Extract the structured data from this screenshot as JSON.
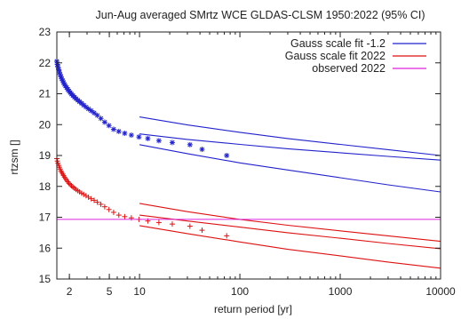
{
  "chart_data": {
    "type": "scatter",
    "title": "Jun-Aug averaged  SMrtz WCE GLDAS-CLSM 1950:2022 (95% CI)",
    "xlabel": "return period [yr]",
    "ylabel": "rtzsm []",
    "xscale": "log",
    "xlim": [
      1.5,
      10000
    ],
    "ylim": [
      15,
      23
    ],
    "grid": false,
    "legend_position": "top-right",
    "x_ticks": [
      {
        "value": 2,
        "label": "2"
      },
      {
        "value": 5,
        "label": "5"
      },
      {
        "value": 10,
        "label": "10"
      },
      {
        "value": 100,
        "label": "100"
      },
      {
        "value": 1000,
        "label": "1000"
      },
      {
        "value": 10000,
        "label": "10000"
      }
    ],
    "y_ticks": [
      {
        "value": 15,
        "label": "15"
      },
      {
        "value": 16,
        "label": "16"
      },
      {
        "value": 17,
        "label": "17"
      },
      {
        "value": 18,
        "label": "18"
      },
      {
        "value": 19,
        "label": "19"
      },
      {
        "value": 20,
        "label": "20"
      },
      {
        "value": 21,
        "label": "21"
      },
      {
        "value": 22,
        "label": "22"
      },
      {
        "value": 23,
        "label": "23"
      }
    ],
    "series": [
      {
        "name": "Gauss scale fit -1.2",
        "color": "#2222cc",
        "fit": {
          "x": [
            10,
            30,
            100,
            300,
            1000,
            3000,
            10000
          ],
          "central": [
            19.7,
            19.52,
            19.36,
            19.22,
            19.09,
            18.97,
            18.85
          ],
          "upper": [
            20.25,
            19.99,
            19.75,
            19.55,
            19.36,
            19.19,
            19.0
          ],
          "lower": [
            19.35,
            19.06,
            18.76,
            18.53,
            18.28,
            18.05,
            17.82
          ]
        },
        "points_marker": "asterisk",
        "points": [
          [
            1.5,
            22.05
          ],
          [
            1.52,
            21.95
          ],
          [
            1.54,
            21.87
          ],
          [
            1.57,
            21.78
          ],
          [
            1.59,
            21.7
          ],
          [
            1.62,
            21.62
          ],
          [
            1.65,
            21.55
          ],
          [
            1.68,
            21.48
          ],
          [
            1.72,
            21.42
          ],
          [
            1.75,
            21.36
          ],
          [
            1.79,
            21.3
          ],
          [
            1.83,
            21.25
          ],
          [
            1.88,
            21.2
          ],
          [
            1.93,
            21.14
          ],
          [
            1.98,
            21.09
          ],
          [
            2.04,
            21.04
          ],
          [
            2.1,
            20.99
          ],
          [
            2.17,
            20.94
          ],
          [
            2.25,
            20.89
          ],
          [
            2.33,
            20.84
          ],
          [
            2.43,
            20.79
          ],
          [
            2.53,
            20.74
          ],
          [
            2.65,
            20.69
          ],
          [
            2.78,
            20.63
          ],
          [
            2.93,
            20.57
          ],
          [
            3.1,
            20.51
          ],
          [
            3.3,
            20.45
          ],
          [
            3.53,
            20.38
          ],
          [
            3.8,
            20.3
          ],
          [
            4.12,
            20.2
          ],
          [
            4.5,
            20.08
          ],
          [
            4.96,
            19.97
          ],
          [
            5.52,
            19.85
          ],
          [
            6.22,
            19.78
          ],
          [
            7.12,
            19.72
          ],
          [
            8.29,
            19.66
          ],
          [
            9.87,
            19.6
          ],
          [
            12.1,
            19.55
          ],
          [
            15.6,
            19.48
          ],
          [
            21.2,
            19.42
          ],
          [
            31.8,
            19.35
          ],
          [
            42.0,
            19.2
          ],
          [
            73.9,
            19.0
          ]
        ]
      },
      {
        "name": "Gauss scale fit 2022",
        "color": "#dd1111",
        "fit": {
          "x": [
            10,
            30,
            100,
            300,
            1000,
            3000,
            10000
          ],
          "central": [
            17.07,
            16.88,
            16.68,
            16.5,
            16.32,
            16.15,
            15.98
          ],
          "upper": [
            17.45,
            17.18,
            16.93,
            16.74,
            16.56,
            16.4,
            16.22
          ],
          "lower": [
            16.73,
            16.47,
            16.2,
            15.96,
            15.75,
            15.55,
            15.35
          ]
        },
        "points_marker": "plus",
        "points": [
          [
            1.5,
            18.9
          ],
          [
            1.52,
            18.82
          ],
          [
            1.54,
            18.75
          ],
          [
            1.57,
            18.68
          ],
          [
            1.59,
            18.62
          ],
          [
            1.62,
            18.56
          ],
          [
            1.65,
            18.5
          ],
          [
            1.68,
            18.45
          ],
          [
            1.72,
            18.4
          ],
          [
            1.75,
            18.35
          ],
          [
            1.79,
            18.3
          ],
          [
            1.83,
            18.25
          ],
          [
            1.88,
            18.2
          ],
          [
            1.93,
            18.15
          ],
          [
            1.98,
            18.1
          ],
          [
            2.04,
            18.06
          ],
          [
            2.1,
            18.02
          ],
          [
            2.17,
            17.98
          ],
          [
            2.25,
            17.94
          ],
          [
            2.33,
            17.9
          ],
          [
            2.43,
            17.86
          ],
          [
            2.53,
            17.82
          ],
          [
            2.65,
            17.78
          ],
          [
            2.78,
            17.74
          ],
          [
            2.93,
            17.7
          ],
          [
            3.1,
            17.65
          ],
          [
            3.3,
            17.6
          ],
          [
            3.53,
            17.55
          ],
          [
            3.8,
            17.49
          ],
          [
            4.12,
            17.42
          ],
          [
            4.5,
            17.34
          ],
          [
            4.96,
            17.25
          ],
          [
            5.52,
            17.16
          ],
          [
            6.22,
            17.07
          ],
          [
            7.12,
            17.02
          ],
          [
            8.29,
            16.98
          ],
          [
            9.87,
            16.93
          ],
          [
            12.1,
            16.88
          ],
          [
            15.6,
            16.83
          ],
          [
            21.2,
            16.78
          ],
          [
            31.8,
            16.71
          ],
          [
            42.0,
            16.58
          ],
          [
            73.9,
            16.4
          ]
        ]
      },
      {
        "name": "observed 2022",
        "color": "#dd22dd",
        "hline": 16.93
      }
    ]
  }
}
